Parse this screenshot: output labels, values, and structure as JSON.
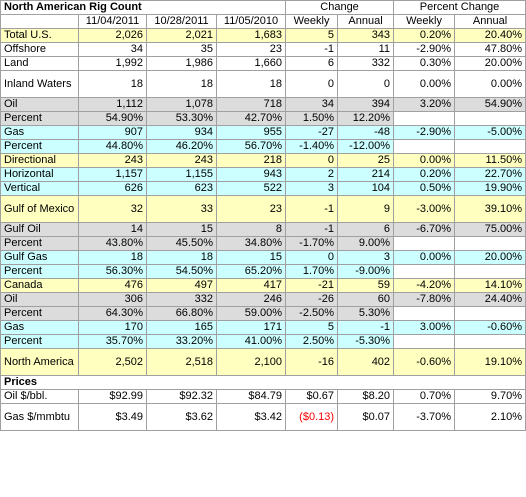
{
  "title": "North American Rig Count",
  "headers": {
    "date1": "11/04/2011",
    "date2": "10/28/2011",
    "date3": "11/05/2010",
    "change_group": "Change",
    "pct_change_group": "Percent Change",
    "weekly": "Weekly",
    "annual": "Annual",
    "pct_weekly": "Weekly",
    "pct_annual": "Annual"
  },
  "rows": [
    {
      "label": "Total U.S.",
      "cells": [
        "2,026",
        "2,021",
        "1,683",
        "5",
        "343",
        "0.20%",
        "20.40%"
      ]
    },
    {
      "label": "Offshore",
      "cells": [
        "34",
        "35",
        "23",
        "-1",
        "11",
        "-2.90%",
        "47.80%"
      ]
    },
    {
      "label": "Land",
      "cells": [
        "1,992",
        "1,986",
        "1,660",
        "6",
        "332",
        "0.30%",
        "20.00%"
      ]
    },
    {
      "label": "Inland Waters",
      "cells": [
        "18",
        "18",
        "18",
        "0",
        "0",
        "0.00%",
        "0.00%"
      ]
    },
    {
      "label": "Oil",
      "cells": [
        "1,112",
        "1,078",
        "718",
        "34",
        "394",
        "3.20%",
        "54.90%"
      ]
    },
    {
      "label": "Percent",
      "cells": [
        "54.90%",
        "53.30%",
        "42.70%",
        "1.50%",
        "12.20%",
        "",
        ""
      ]
    },
    {
      "label": "Gas",
      "cells": [
        "907",
        "934",
        "955",
        "-27",
        "-48",
        "-2.90%",
        "-5.00%"
      ]
    },
    {
      "label": "Percent",
      "cells": [
        "44.80%",
        "46.20%",
        "56.70%",
        "-1.40%",
        "-12.00%",
        "",
        ""
      ]
    },
    {
      "label": "Directional",
      "cells": [
        "243",
        "243",
        "218",
        "0",
        "25",
        "0.00%",
        "11.50%"
      ]
    },
    {
      "label": "Horizontal",
      "cells": [
        "1,157",
        "1,155",
        "943",
        "2",
        "214",
        "0.20%",
        "22.70%"
      ]
    },
    {
      "label": "Vertical",
      "cells": [
        "626",
        "623",
        "522",
        "3",
        "104",
        "0.50%",
        "19.90%"
      ]
    },
    {
      "label": "Gulf of Mexico",
      "cells": [
        "32",
        "33",
        "23",
        "-1",
        "9",
        "-3.00%",
        "39.10%"
      ]
    },
    {
      "label": "Gulf Oil",
      "cells": [
        "14",
        "15",
        "8",
        "-1",
        "6",
        "-6.70%",
        "75.00%"
      ]
    },
    {
      "label": "Percent",
      "cells": [
        "43.80%",
        "45.50%",
        "34.80%",
        "-1.70%",
        "9.00%",
        "",
        ""
      ]
    },
    {
      "label": "Gulf Gas",
      "cells": [
        "18",
        "18",
        "15",
        "0",
        "3",
        "0.00%",
        "20.00%"
      ]
    },
    {
      "label": "Percent",
      "cells": [
        "56.30%",
        "54.50%",
        "65.20%",
        "1.70%",
        "-9.00%",
        "",
        ""
      ]
    },
    {
      "label": "Canada",
      "cells": [
        "476",
        "497",
        "417",
        "-21",
        "59",
        "-4.20%",
        "14.10%"
      ]
    },
    {
      "label": "Oil",
      "cells": [
        "306",
        "332",
        "246",
        "-26",
        "60",
        "-7.80%",
        "24.40%"
      ]
    },
    {
      "label": "Percent",
      "cells": [
        "64.30%",
        "66.80%",
        "59.00%",
        "-2.50%",
        "5.30%",
        "",
        ""
      ]
    },
    {
      "label": "Gas",
      "cells": [
        "170",
        "165",
        "171",
        "5",
        "-1",
        "3.00%",
        "-0.60%"
      ]
    },
    {
      "label": "Percent",
      "cells": [
        "35.70%",
        "33.20%",
        "41.00%",
        "2.50%",
        "-5.30%",
        "",
        ""
      ]
    },
    {
      "label": "North America",
      "cells": [
        "2,502",
        "2,518",
        "2,100",
        "-16",
        "402",
        "-0.60%",
        "19.10%"
      ]
    }
  ],
  "prices_title": "Prices",
  "prices": [
    {
      "label": "Oil $/bbl.",
      "cells": [
        "$92.99",
        "$92.32",
        "$84.79",
        "$0.67",
        "$8.20",
        "0.70%",
        "9.70%"
      ]
    },
    {
      "label": "Gas $/mmbtu",
      "cells": [
        "$3.49",
        "$3.62",
        "$3.42",
        "($0.13)",
        "$0.07",
        "-3.70%",
        "2.10%"
      ]
    }
  ],
  "colors": {
    "yellow_row": "#ffffc0",
    "cyan_row": "#ccffff",
    "gray_row": "#dcdcdc",
    "negative_text": "#ff0000"
  }
}
